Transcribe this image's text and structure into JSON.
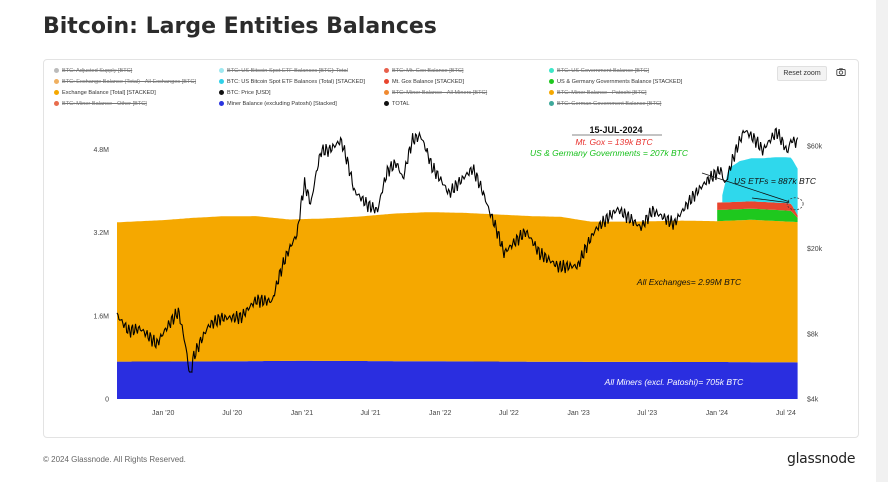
{
  "page": {
    "title": "Bitcoin: Large Entities Balances",
    "footer_copyright": "© 2024 Glassnode. All Rights Reserved.",
    "logo_text": "glassnode",
    "reset_zoom_label": "Reset zoom"
  },
  "legend": [
    {
      "label": "BTC: Adjusted Supply [BTC]",
      "color": "#bbbbbb",
      "hidden": true
    },
    {
      "label": "BTC: US Bitcoin Spot ETF Balances [BTC]: Total",
      "color": "#9ee8f0",
      "hidden": true
    },
    {
      "label": "BTC: Mt. Gox Balance [BTC]",
      "color": "#e8604c",
      "hidden": true
    },
    {
      "label": "BTC: US Government Balance [BTC]",
      "color": "#3de6c8",
      "hidden": true
    },
    {
      "label": "BTC: Exchange Balance (Total) - All Exchanges [BTC]",
      "color": "#f0b060",
      "hidden": true
    },
    {
      "label": "BTC: US Bitcoin Spot ETF Balances (Total) [STACKED]",
      "color": "#2fd0e8",
      "hidden": false
    },
    {
      "label": "Mt. Gox Balance [STACKED]",
      "color": "#e8452e",
      "hidden": false
    },
    {
      "label": "US & Germany Governments Balance [STACKED]",
      "color": "#1ec81e",
      "hidden": false
    },
    {
      "label": "Exchange Balance [Total] [STACKED]",
      "color": "#f5a800",
      "hidden": false
    },
    {
      "label": "BTC: Price [USD]",
      "color": "#111111",
      "hidden": false
    },
    {
      "label": "BTC: Miner Balance - All Miners [BTC]",
      "color": "#f08a30",
      "hidden": true
    },
    {
      "label": "BTC: Miner Balance - Patoshi [BTC]",
      "color": "#f5a800",
      "hidden": true
    },
    {
      "label": "BTC: Miner Balance - Other [BTC]",
      "color": "#e86c4c",
      "hidden": true
    },
    {
      "label": "Miner Balance (excluding Patoshi) [Stacked]",
      "color": "#2a34e0",
      "hidden": false
    },
    {
      "label": "TOTAL",
      "color": "#111111",
      "hidden": false
    },
    {
      "label": "BTC: German Government Balance [BTC]",
      "color": "#3ea89a",
      "hidden": true
    }
  ],
  "chart_data": {
    "type": "area",
    "x_ticks": [
      "Jan '20",
      "Jul '20",
      "Jan '21",
      "Jul '21",
      "Jan '22",
      "Jul '22",
      "Jan '23",
      "Jul '23",
      "Jan '24",
      "Jul '24"
    ],
    "x_range": [
      "2019-09-01",
      "2024-08-10"
    ],
    "y_left_ticks": [
      "0",
      "1.6M",
      "3.2M",
      "4.8M"
    ],
    "y_left_range": [
      0,
      5600000
    ],
    "y_right_ticks": [
      "$4k",
      "$8k",
      "$20k",
      "$60k"
    ],
    "y_right_range": [
      4000,
      90000
    ],
    "y_right_scale": "log",
    "grid": false,
    "annotations": {
      "date": "15-JUL-2024",
      "mtgox": "Mt. Gox = 139k BTC",
      "gov": "US & Germany Governments = 207k BTC",
      "etf": "US ETFs = 887k BTC",
      "exchanges": "All Exchanges= 2.99M BTC",
      "miners": "All Miners (excl. Patoshi)= 705k BTC"
    },
    "colors": {
      "miners": "#2a2ee0",
      "exchanges": "#f5a800",
      "gov": "#1ec81e",
      "mtgox": "#e8452e",
      "etf": "#2fd8ec",
      "price": "#000000"
    },
    "series": [
      {
        "name": "Miner Balance (excluding Patoshi) [Stacked]",
        "x": [
          "2019-09-01",
          "2020-06-01",
          "2021-01-01",
          "2022-01-01",
          "2023-01-01",
          "2024-01-01",
          "2024-08-01"
        ],
        "values": [
          720000,
          725000,
          735000,
          725000,
          715000,
          712000,
          705000
        ]
      },
      {
        "name": "Exchange Balance [Total] [STACKED]",
        "x": [
          "2019-09-01",
          "2020-01-01",
          "2020-03-15",
          "2020-06-01",
          "2020-09-01",
          "2020-12-01",
          "2021-03-01",
          "2021-06-01",
          "2021-09-01",
          "2021-12-01",
          "2022-03-01",
          "2022-06-01",
          "2022-09-01",
          "2022-11-15",
          "2023-02-01",
          "2023-06-01",
          "2023-10-01",
          "2024-01-01",
          "2024-04-01",
          "2024-08-01"
        ],
        "values": [
          2680000,
          2720000,
          2760000,
          2790000,
          2790000,
          2720000,
          2740000,
          2780000,
          2840000,
          2870000,
          2860000,
          2830000,
          2800000,
          2790000,
          2700000,
          2700000,
          2720000,
          2710000,
          2740000,
          2700000
        ]
      },
      {
        "name": "US & Germany Governments Balance [STACKED]",
        "x": [
          "2024-01-01",
          "2024-07-01",
          "2024-07-15",
          "2024-08-01"
        ],
        "values": [
          215000,
          212000,
          207000,
          80000
        ]
      },
      {
        "name": "Mt. Gox Balance [STACKED]",
        "x": [
          "2024-01-01",
          "2024-07-01",
          "2024-07-15",
          "2024-08-01"
        ],
        "values": [
          142000,
          141000,
          139000,
          48000
        ]
      },
      {
        "name": "BTC: US Bitcoin Spot ETF Balances (Total) [STACKED]",
        "x": [
          "2024-01-11",
          "2024-02-01",
          "2024-03-01",
          "2024-04-01",
          "2024-05-01",
          "2024-06-01",
          "2024-07-15",
          "2024-08-01"
        ],
        "values": [
          0,
          650000,
          780000,
          830000,
          840000,
          870000,
          887000,
          900000
        ]
      },
      {
        "name": "BTC: Price [USD]",
        "x": [
          "2019-09-01",
          "2019-10-01",
          "2019-11-01",
          "2019-12-15",
          "2020-02-10",
          "2020-03-12",
          "2020-03-20",
          "2020-05-01",
          "2020-06-01",
          "2020-07-25",
          "2020-09-01",
          "2020-10-15",
          "2020-11-20",
          "2020-12-20",
          "2021-01-08",
          "2021-01-25",
          "2021-02-21",
          "2021-03-15",
          "2021-04-14",
          "2021-05-19",
          "2021-06-22",
          "2021-07-20",
          "2021-08-15",
          "2021-09-07",
          "2021-09-25",
          "2021-10-20",
          "2021-11-10",
          "2021-12-10",
          "2022-01-24",
          "2022-03-28",
          "2022-05-10",
          "2022-06-18",
          "2022-08-15",
          "2022-09-20",
          "2022-11-09",
          "2022-12-30",
          "2023-02-15",
          "2023-04-14",
          "2023-06-15",
          "2023-07-15",
          "2023-09-10",
          "2023-10-25",
          "2023-12-10",
          "2024-01-11",
          "2024-01-23",
          "2024-02-28",
          "2024-03-14",
          "2024-04-15",
          "2024-05-01",
          "2024-06-07",
          "2024-07-05",
          "2024-07-15",
          "2024-08-01"
        ],
        "values": [
          9800,
          8300,
          8500,
          7200,
          10200,
          5000,
          6200,
          8800,
          9500,
          9600,
          11500,
          11400,
          18400,
          23500,
          40000,
          32000,
          57000,
          57500,
          63500,
          37000,
          32000,
          30000,
          46000,
          50000,
          42000,
          64000,
          67000,
          48000,
          36000,
          47000,
          30000,
          19000,
          24000,
          19000,
          16500,
          16600,
          24500,
          30500,
          25000,
          30000,
          26000,
          34000,
          42000,
          46500,
          39500,
          62000,
          71000,
          63000,
          57000,
          70000,
          56000,
          64000,
          62000
        ]
      }
    ]
  }
}
